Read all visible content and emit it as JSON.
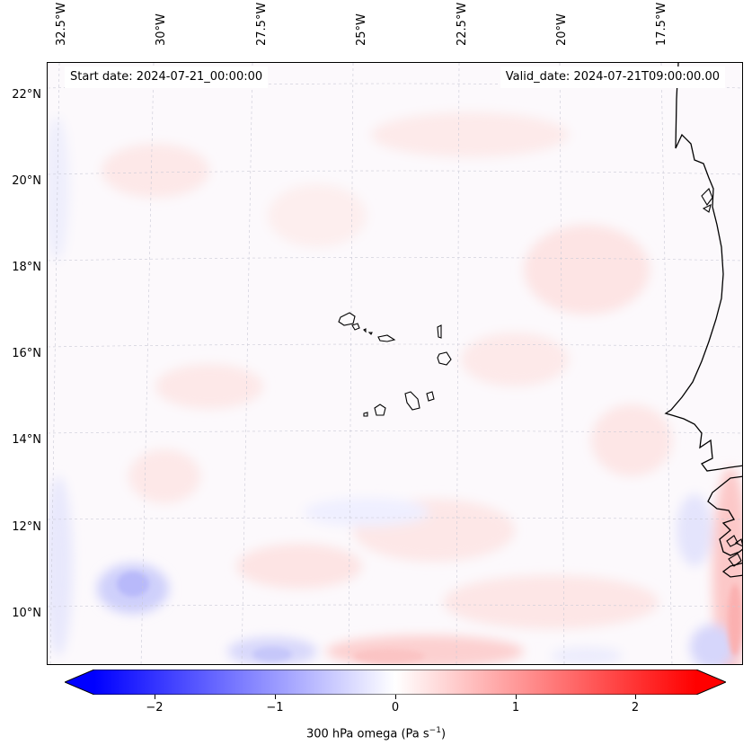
{
  "header": {
    "start_date": "Start date: 2024-07-21_00:00:00",
    "valid_date": "Valid_date: 2024-07-21T09:00:00.00"
  },
  "longitude_labels": [
    "32.5°W",
    "30°W",
    "27.5°W",
    "25°W",
    "22.5°W",
    "20°W",
    "17.5°W"
  ],
  "latitude_labels": [
    "22°N",
    "20°N",
    "18°N",
    "16°N",
    "14°N",
    "12°N",
    "10°N"
  ],
  "colorbar": {
    "label": "300 hPa omega (Pa s",
    "label_sup": "−1",
    "label_end": ")",
    "ticks": [
      "−2",
      "−1",
      "0",
      "1",
      "2"
    ],
    "min": -2.75,
    "max": 2.75,
    "extend": "both",
    "colormap": "bwr",
    "low_color": "#0000ff",
    "mid_color": "#ffffff",
    "high_color": "#ff0000"
  },
  "map": {
    "variable": "300 hPa omega",
    "lon_range_deg": [
      -33,
      -15.7
    ],
    "lat_range_deg": [
      8.8,
      22.7
    ],
    "gridlines": true,
    "coastline_color": "#000000"
  }
}
